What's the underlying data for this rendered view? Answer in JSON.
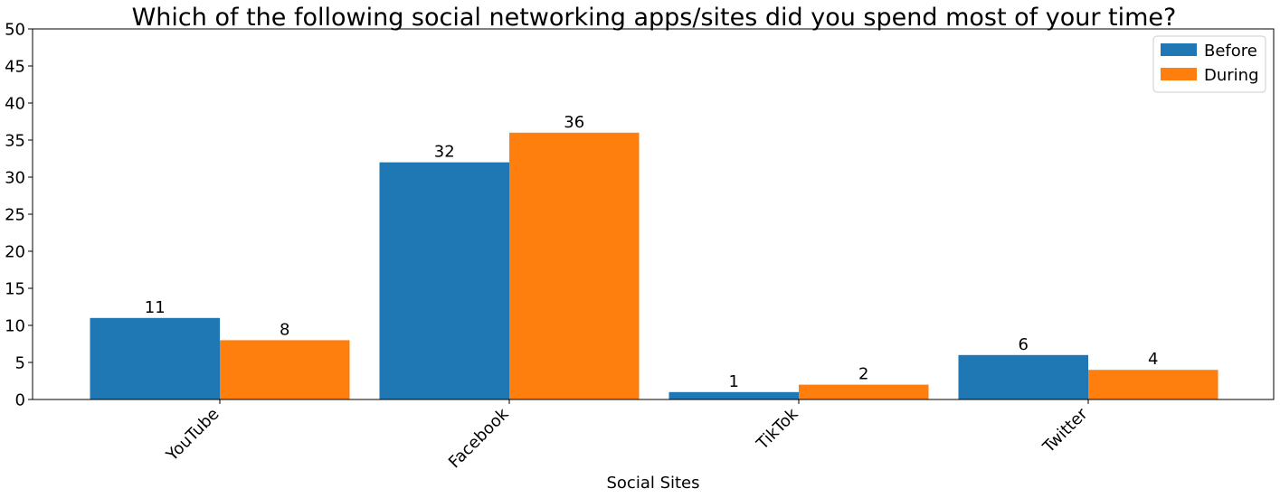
{
  "chart_data": {
    "type": "bar",
    "title": "Which of the following social networking apps/sites did you spend most of your time?",
    "xlabel": "Social Sites",
    "ylabel": "",
    "categories": [
      "YouTube",
      "Facebook",
      "TikTok",
      "Twitter"
    ],
    "series": [
      {
        "name": "Before",
        "values": [
          11,
          32,
          1,
          6
        ],
        "color": "#1f77b4"
      },
      {
        "name": "During",
        "values": [
          8,
          36,
          2,
          4
        ],
        "color": "#ff7f0e"
      }
    ],
    "ylim": [
      0,
      50
    ],
    "yticks": [
      0,
      5,
      10,
      15,
      20,
      25,
      30,
      35,
      40,
      45,
      50
    ],
    "grid": false,
    "legend_position": "top-right",
    "x_tick_rotation_deg": 45
  }
}
